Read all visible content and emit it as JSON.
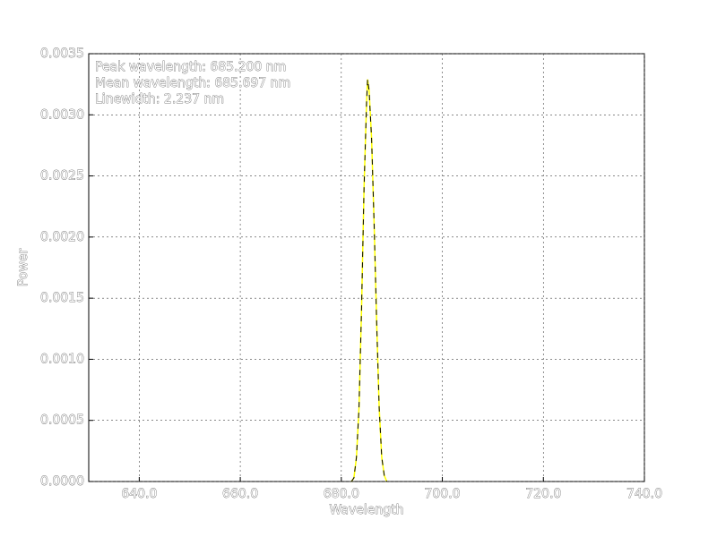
{
  "chart_data": {
    "type": "line",
    "x_label": "Wavelength",
    "y_label": "Power",
    "annotations": [
      "Peak wavelength: 685.200 nm",
      "Mean wavelength: 685.697 nm",
      "Linewidth: 2.237 nm"
    ],
    "x": [
      682,
      682.5,
      683,
      683.5,
      684,
      684.5,
      685,
      685.2,
      685.5,
      686,
      686.5,
      687,
      687.5,
      688,
      688.5,
      689
    ],
    "series": [
      {
        "name": "Power",
        "color": "#ffff00",
        "dash_color": "#000000",
        "values": [
          0,
          3e-05,
          0.0002,
          0.0006,
          0.0014,
          0.0024,
          0.0031,
          0.00329,
          0.0032,
          0.0028,
          0.0021,
          0.0013,
          0.0006,
          0.0002,
          5e-05,
          0
        ]
      }
    ],
    "xlim": [
      630,
      740
    ],
    "xticks": [
      {
        "value": 640,
        "label": "640.0"
      },
      {
        "value": 660,
        "label": "660.0"
      },
      {
        "value": 680,
        "label": "680.0"
      },
      {
        "value": 700,
        "label": "700.0"
      },
      {
        "value": 720,
        "label": "720.0"
      },
      {
        "value": 740,
        "label": "740.0"
      }
    ],
    "ylim": [
      0,
      0.0035
    ],
    "yticks": [
      {
        "value": 0,
        "label": "0.0000"
      },
      {
        "value": 0.0005,
        "label": "0.0005"
      },
      {
        "value": 0.001,
        "label": "0.0010"
      },
      {
        "value": 0.0015,
        "label": "0.0015"
      },
      {
        "value": 0.002,
        "label": "0.0020"
      },
      {
        "value": 0.0025,
        "label": "0.0025"
      },
      {
        "value": 0.003,
        "label": "0.0030"
      },
      {
        "value": 0.0035,
        "label": "0.0035"
      }
    ],
    "grid": true
  }
}
